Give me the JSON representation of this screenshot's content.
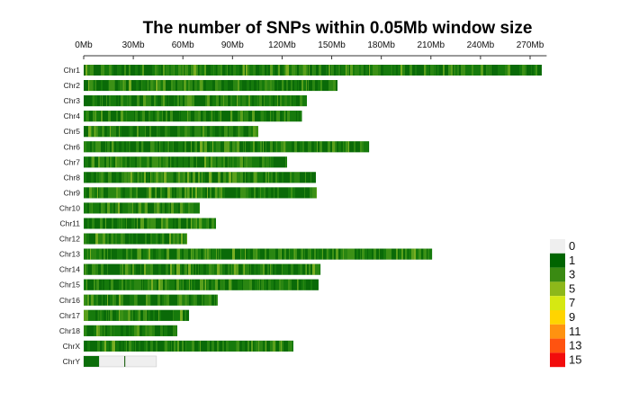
{
  "chart_data": {
    "type": "heatmap",
    "title": "The number of SNPs within 0.05Mb window size",
    "xlabel": "",
    "ylabel": "",
    "x_unit": "Mb",
    "xlim": [
      0,
      280
    ],
    "x_ticks": [
      0,
      30,
      60,
      90,
      120,
      150,
      180,
      210,
      240,
      270
    ],
    "x_tick_labels": [
      "0Mb",
      "30Mb",
      "60Mb",
      "90Mb",
      "120Mb",
      "150Mb",
      "180Mb",
      "210Mb",
      "240Mb",
      "270Mb"
    ],
    "window_size_mb": 0.05,
    "chromosomes": [
      {
        "name": "Chr1",
        "length_mb": 277
      },
      {
        "name": "Chr2",
        "length_mb": 153.5
      },
      {
        "name": "Chr3",
        "length_mb": 135
      },
      {
        "name": "Chr4",
        "length_mb": 132
      },
      {
        "name": "Chr5",
        "length_mb": 105.6
      },
      {
        "name": "Chr6",
        "length_mb": 172.6
      },
      {
        "name": "Chr7",
        "length_mb": 123
      },
      {
        "name": "Chr8",
        "length_mb": 140.4
      },
      {
        "name": "Chr9",
        "length_mb": 141
      },
      {
        "name": "Chr10",
        "length_mb": 70.2
      },
      {
        "name": "Chr11",
        "length_mb": 80
      },
      {
        "name": "Chr12",
        "length_mb": 62.6
      },
      {
        "name": "Chr13",
        "length_mb": 210.7
      },
      {
        "name": "Chr14",
        "length_mb": 143.2
      },
      {
        "name": "Chr15",
        "length_mb": 142
      },
      {
        "name": "Chr16",
        "length_mb": 81
      },
      {
        "name": "Chr17",
        "length_mb": 63.7
      },
      {
        "name": "Chr18",
        "length_mb": 56.6
      },
      {
        "name": "ChrX",
        "length_mb": 126.8
      },
      {
        "name": "ChrY",
        "length_mb": 44,
        "dense_region_mb": [
          0,
          9.3
        ],
        "sparse_marks_mb": [
          24.5
        ]
      }
    ],
    "legend": {
      "placement": "right",
      "labels": [
        "0",
        "1",
        "3",
        "5",
        "7",
        "9",
        "11",
        "13",
        "15"
      ],
      "colors": [
        "#efefef",
        "#006400",
        "#3a8a12",
        "#8db81a",
        "#d6e812",
        "#ffd400",
        "#ff9210",
        "#ff5310",
        "#f20c0c"
      ]
    },
    "typical_density_range": [
      1,
      5
    ]
  }
}
